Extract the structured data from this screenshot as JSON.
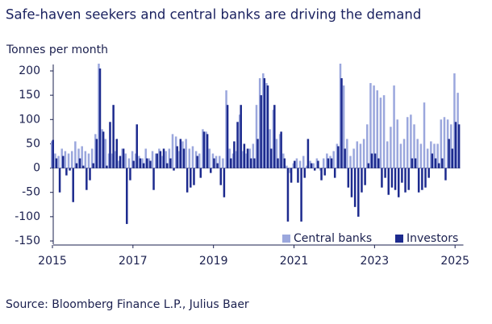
{
  "chart_data": {
    "type": "bar",
    "title": "Safe-haven seekers and central banks are driving the demand",
    "y_label": "Tonnes per month",
    "source": "Source: Bloomberg Finance L.P., Julius Baer",
    "categories": [
      "2015",
      null,
      null,
      null,
      null,
      null,
      null,
      null,
      null,
      null,
      null,
      null,
      null,
      null,
      null,
      null,
      null,
      null,
      null,
      null,
      null,
      null,
      null,
      null,
      "2017",
      null,
      null,
      null,
      null,
      null,
      null,
      null,
      null,
      null,
      null,
      null,
      null,
      null,
      null,
      null,
      null,
      null,
      null,
      null,
      null,
      null,
      null,
      null,
      "2019",
      null,
      null,
      null,
      null,
      null,
      null,
      null,
      null,
      null,
      null,
      null,
      null,
      null,
      null,
      null,
      null,
      null,
      null,
      null,
      null,
      null,
      null,
      null,
      "2021",
      null,
      null,
      null,
      null,
      null,
      null,
      null,
      null,
      null,
      null,
      null,
      null,
      null,
      null,
      null,
      null,
      null,
      null,
      null,
      null,
      null,
      null,
      null,
      "2023",
      null,
      null,
      null,
      null,
      null,
      null,
      null,
      null,
      null,
      null,
      null,
      null,
      null,
      null,
      null,
      null,
      null,
      null,
      null,
      null,
      null,
      null,
      null,
      "2025",
      null
    ],
    "series": [
      {
        "name": "Central banks",
        "color": "#9ba7dd",
        "values": [
          55,
          30,
          25,
          40,
          35,
          30,
          35,
          55,
          40,
          45,
          35,
          30,
          40,
          70,
          215,
          80,
          60,
          30,
          30,
          35,
          15,
          40,
          30,
          20,
          35,
          30,
          25,
          20,
          40,
          20,
          35,
          30,
          40,
          25,
          35,
          40,
          70,
          65,
          35,
          55,
          60,
          40,
          45,
          35,
          30,
          80,
          75,
          40,
          30,
          25,
          25,
          20,
          160,
          40,
          30,
          35,
          110,
          35,
          30,
          40,
          50,
          130,
          185,
          195,
          175,
          80,
          120,
          60,
          70,
          30,
          5,
          -10,
          10,
          20,
          15,
          25,
          5,
          15,
          10,
          20,
          -5,
          20,
          30,
          25,
          35,
          50,
          215,
          170,
          60,
          25,
          40,
          55,
          50,
          60,
          90,
          175,
          170,
          160,
          145,
          150,
          55,
          85,
          170,
          100,
          50,
          60,
          105,
          110,
          90,
          60,
          50,
          135,
          40,
          55,
          50,
          50,
          100,
          105,
          100,
          90,
          195,
          155
        ]
      },
      {
        "name": "Investors",
        "color": "#1c2a8e",
        "values": [
          58,
          20,
          -50,
          25,
          -15,
          -5,
          -70,
          10,
          20,
          5,
          -45,
          -25,
          10,
          60,
          205,
          75,
          5,
          95,
          130,
          60,
          25,
          40,
          -115,
          -25,
          15,
          90,
          20,
          10,
          20,
          15,
          -45,
          30,
          35,
          40,
          10,
          20,
          -5,
          45,
          60,
          40,
          -50,
          -40,
          -35,
          25,
          -20,
          75,
          70,
          -10,
          20,
          10,
          -35,
          -60,
          130,
          20,
          55,
          95,
          130,
          50,
          40,
          20,
          20,
          60,
          150,
          185,
          170,
          40,
          130,
          20,
          75,
          20,
          -110,
          -30,
          15,
          -30,
          -110,
          -20,
          60,
          10,
          -5,
          15,
          -25,
          -15,
          20,
          20,
          -20,
          45,
          185,
          40,
          -40,
          -60,
          -80,
          -100,
          -50,
          -35,
          10,
          30,
          30,
          20,
          -40,
          -20,
          -55,
          -40,
          -45,
          -60,
          -30,
          -50,
          -45,
          20,
          20,
          -50,
          -45,
          -40,
          -20,
          30,
          20,
          10,
          20,
          -25,
          60,
          40,
          95,
          90
        ]
      }
    ],
    "ylim": [
      -150,
      200
    ],
    "yticks": [
      -150,
      -100,
      -50,
      0,
      50,
      100,
      150,
      200
    ],
    "grid": false,
    "legend": "lower right"
  }
}
